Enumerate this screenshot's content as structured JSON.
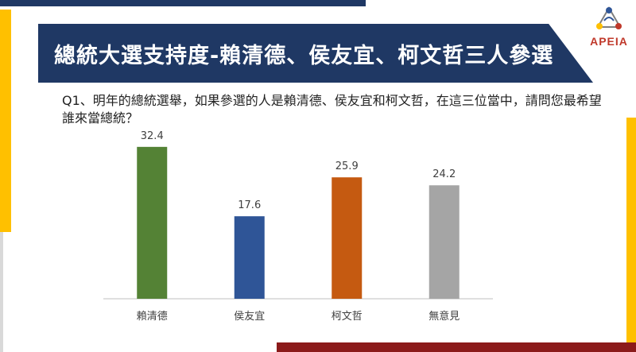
{
  "slide": {
    "title": "總統大選支持度-賴清德、侯友宜、柯文哲三人參選",
    "question": "Q1、明年的總統選舉，如果參選的人是賴清德、侯友宜和柯文哲，在這三位當中，請問您最希望誰來當總統？",
    "logo_text": "APEIA"
  },
  "colors": {
    "navy": "#1f3864",
    "gold": "#ffc000",
    "maroon": "#8b1a1a"
  },
  "chart_data": {
    "type": "bar",
    "categories": [
      "賴清德",
      "侯友宜",
      "柯文哲",
      "無意見"
    ],
    "values": [
      32.4,
      17.6,
      25.9,
      24.2
    ],
    "data_labels": [
      "32.4",
      "17.6",
      "25.9",
      "24.2"
    ],
    "colors": [
      "#548235",
      "#2f5597",
      "#c55a11",
      "#a5a5a5"
    ],
    "ylim": [
      0,
      40
    ],
    "title": "",
    "xlabel": "",
    "ylabel": "",
    "grid": false,
    "legend": "none"
  }
}
